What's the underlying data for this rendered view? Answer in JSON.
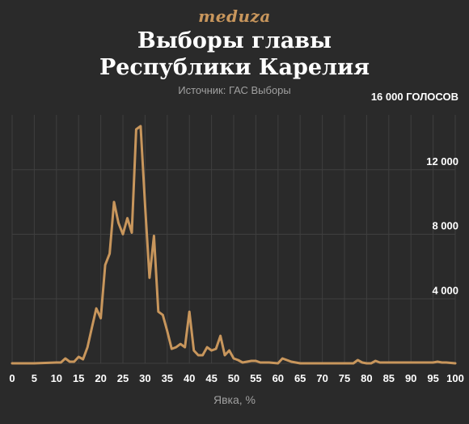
{
  "header": {
    "logo": "meduza",
    "title_line1": "Выборы главы",
    "title_line2": "Республики Карелия",
    "source": "Источник: ГАС Выборы"
  },
  "colors": {
    "background": "#2a2a2a",
    "line": "#c8965c",
    "grid": "#3f3f3f",
    "text": "#ffffff",
    "muted": "#a0a0a0"
  },
  "chart_data": {
    "type": "line",
    "title": "Выборы главы Республики Карелия",
    "xlabel": "Явка, %",
    "ylabel": "",
    "xlim": [
      0,
      100
    ],
    "ylim": [
      0,
      16000
    ],
    "x_ticks": [
      0,
      5,
      10,
      15,
      20,
      25,
      30,
      35,
      40,
      45,
      50,
      55,
      60,
      65,
      70,
      75,
      80,
      85,
      90,
      95,
      100
    ],
    "y_ticks": [
      {
        "value": 4000,
        "label": "4 000"
      },
      {
        "value": 8000,
        "label": "8 000"
      },
      {
        "value": 12000,
        "label": "12 000"
      },
      {
        "value": 16000,
        "label": "16 000 ГОЛОСОВ"
      }
    ],
    "grid": true,
    "legend": "none",
    "series": [
      {
        "x": [
          0,
          5,
          10,
          11,
          12,
          13,
          14,
          15,
          16,
          17,
          18,
          19,
          20,
          21,
          22,
          23,
          24,
          25,
          26,
          27,
          28,
          29,
          30,
          31,
          32,
          33,
          34,
          35,
          36,
          37,
          38,
          39,
          40,
          41,
          42,
          43,
          44,
          45,
          46,
          47,
          48,
          49,
          50,
          51,
          52,
          53,
          54,
          55,
          56,
          57,
          58,
          60,
          61,
          62,
          63,
          64,
          65,
          70,
          75,
          77,
          78,
          79,
          80,
          81,
          82,
          83,
          85,
          90,
          95,
          96,
          97,
          98,
          100
        ],
        "y": [
          0,
          0,
          50,
          50,
          300,
          100,
          100,
          400,
          250,
          1000,
          2200,
          3400,
          2800,
          6100,
          6800,
          10000,
          8700,
          8000,
          9000,
          8100,
          14500,
          14700,
          9800,
          5300,
          7900,
          3200,
          3000,
          2000,
          900,
          1000,
          1200,
          1000,
          3200,
          800,
          500,
          500,
          1000,
          800,
          900,
          1700,
          500,
          800,
          300,
          200,
          50,
          100,
          150,
          150,
          50,
          50,
          50,
          0,
          300,
          200,
          100,
          50,
          0,
          0,
          0,
          0,
          200,
          50,
          0,
          0,
          150,
          50,
          50,
          50,
          50,
          100,
          50,
          50,
          0
        ]
      }
    ]
  }
}
